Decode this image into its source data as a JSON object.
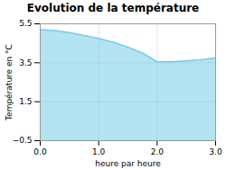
{
  "chart_data": {
    "type": "area",
    "title": "Evolution de la température",
    "xlabel": "heure par heure",
    "ylabel": "Température en °C",
    "x": [
      0,
      0.25,
      0.5,
      0.75,
      1.0,
      1.25,
      1.5,
      1.75,
      2.0,
      2.25,
      2.5,
      2.75,
      3.0
    ],
    "values": [
      5.2,
      5.15,
      5.05,
      4.9,
      4.75,
      4.55,
      4.3,
      4.0,
      3.55,
      3.55,
      3.6,
      3.65,
      3.75
    ],
    "color": "#76cde8",
    "xlim": [
      0,
      3
    ],
    "xticks": [
      0,
      1,
      2,
      3
    ],
    "ylim": [
      -0.5,
      5.5
    ],
    "yticks": [
      -0.5,
      1.5,
      3.5,
      5.5
    ],
    "grid": true
  }
}
